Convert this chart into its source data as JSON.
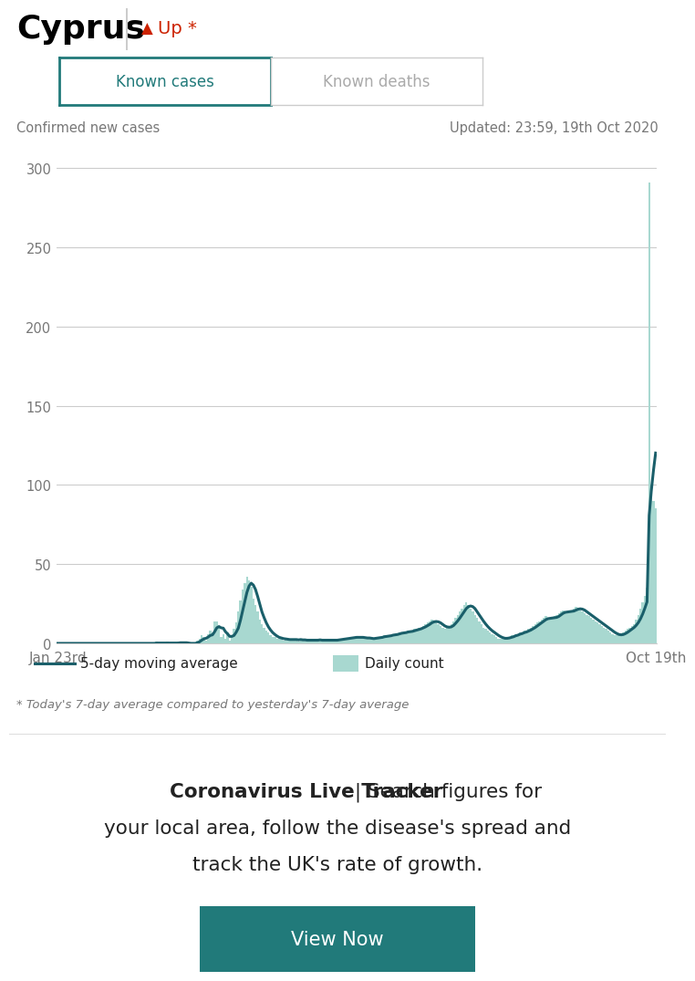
{
  "title": "Cyprus",
  "trend_arrow": "▲",
  "trend_text": "Up *",
  "tab1": "Known cases",
  "tab2": "Known deaths",
  "subtitle_left": "Confirmed new cases",
  "subtitle_right": "Updated: 23:59, 19th Oct 2020",
  "x_start_label": "Jan 23rd",
  "x_end_label": "Oct 19th",
  "y_ticks": [
    0,
    50,
    100,
    150,
    200,
    250,
    300
  ],
  "y_max": 310,
  "bar_color": "#a8d8d0",
  "line_color": "#1a5f6a",
  "legend_line": "5-day moving average",
  "legend_bar": "Daily count",
  "footnote": "* Today's 7-day average compared to yesterday's 7-day average",
  "promo_bold": "Coronavirus Live Tracker",
  "promo_pipe": " | ",
  "promo_normal1": "Search figures for",
  "promo_normal2": "your local area, follow the disease's spread and",
  "promo_normal3": "track the UK's rate of growth.",
  "button_text": "View Now",
  "button_color": "#217a7a",
  "button_text_color": "#ffffff",
  "tab_active_border": "#217a7a",
  "tab_active_text": "#217a7a",
  "tab_inactive_text": "#aaaaaa",
  "tab_inactive_border": "#cccccc",
  "background_color": "#ffffff",
  "grid_color": "#cccccc",
  "axis_line_color": "#cccccc",
  "tick_label_color": "#777777",
  "title_color": "#000000",
  "trend_color": "#cc2200",
  "separator_color": "#cccccc",
  "promo_text_color": "#222222",
  "footnote_color": "#777777",
  "daily_cases": [
    0,
    0,
    0,
    0,
    0,
    0,
    0,
    0,
    0,
    0,
    0,
    0,
    0,
    0,
    0,
    0,
    0,
    0,
    0,
    0,
    0,
    0,
    0,
    0,
    0,
    0,
    0,
    0,
    0,
    0,
    0,
    0,
    0,
    0,
    0,
    0,
    0,
    0,
    0,
    0,
    0,
    0,
    0,
    0,
    0,
    0,
    1,
    0,
    0,
    0,
    0,
    1,
    0,
    0,
    0,
    0,
    1,
    1,
    0,
    0,
    0,
    0,
    0,
    0,
    0,
    2,
    3,
    5,
    4,
    2,
    6,
    8,
    7,
    14,
    14,
    10,
    4,
    6,
    3,
    7,
    2,
    4,
    9,
    13,
    20,
    27,
    34,
    38,
    42,
    40,
    36,
    28,
    24,
    20,
    15,
    12,
    10,
    8,
    7,
    5,
    4,
    4,
    3,
    3,
    3,
    2,
    3,
    2,
    2,
    3,
    2,
    3,
    1,
    3,
    2,
    2,
    2,
    1,
    3,
    2,
    2,
    2,
    2,
    2,
    2,
    2,
    2,
    2,
    2,
    2,
    2,
    3,
    3,
    3,
    3,
    3,
    4,
    4,
    4,
    4,
    3,
    4,
    4,
    3,
    3,
    3,
    3,
    3,
    4,
    4,
    4,
    4,
    5,
    5,
    5,
    5,
    6,
    6,
    6,
    7,
    7,
    7,
    7,
    8,
    8,
    8,
    9,
    9,
    10,
    10,
    11,
    12,
    13,
    14,
    15,
    14,
    13,
    12,
    11,
    10,
    9,
    10,
    11,
    12,
    14,
    16,
    18,
    20,
    22,
    24,
    26,
    24,
    22,
    20,
    18,
    16,
    14,
    12,
    10,
    9,
    8,
    7,
    6,
    5,
    4,
    3,
    3,
    3,
    3,
    4,
    4,
    5,
    5,
    6,
    6,
    7,
    7,
    8,
    8,
    9,
    10,
    11,
    12,
    13,
    14,
    15,
    16,
    17,
    16,
    15,
    16,
    17,
    18,
    19,
    20,
    21,
    20,
    19,
    20,
    21,
    22,
    23,
    22,
    21,
    20,
    19,
    18,
    17,
    16,
    15,
    14,
    13,
    12,
    11,
    10,
    9,
    8,
    7,
    6,
    5,
    5,
    5,
    6,
    7,
    8,
    9,
    10,
    11,
    12,
    15,
    18,
    22,
    26,
    30,
    35,
    291,
    100,
    90,
    85
  ]
}
